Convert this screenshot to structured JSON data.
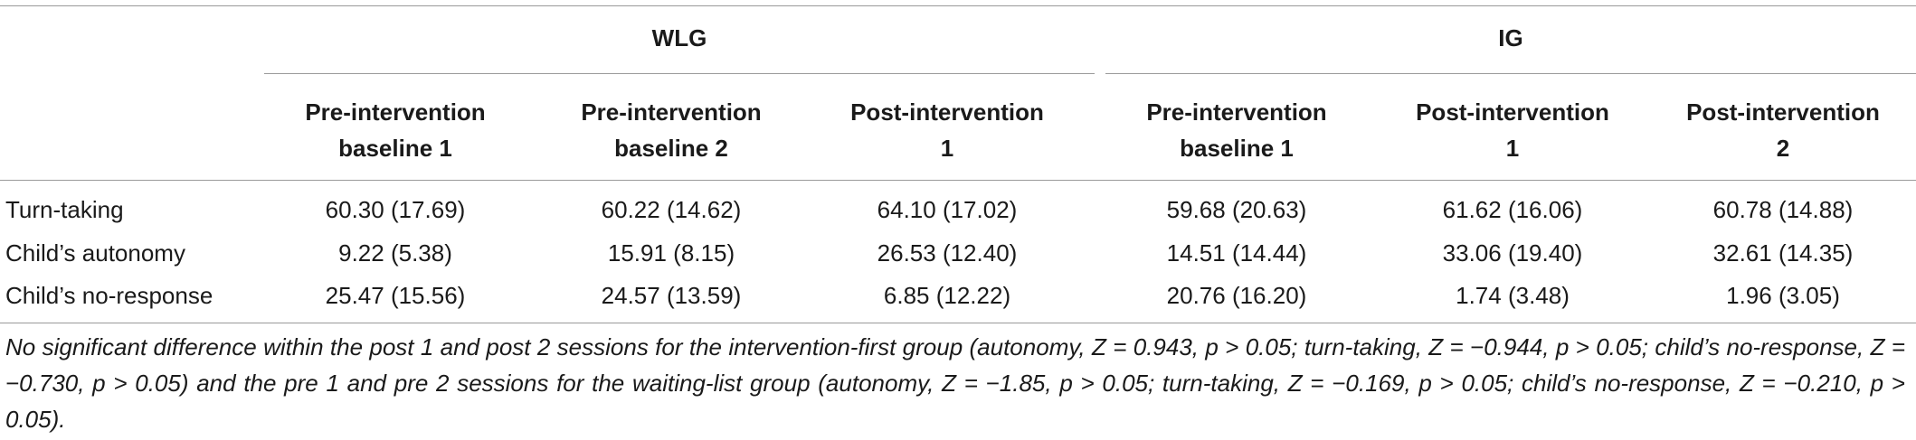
{
  "table": {
    "groups": {
      "wlg": "WLG",
      "ig": "IG"
    },
    "columns": [
      {
        "line1": "Pre-intervention",
        "line2": "baseline 1"
      },
      {
        "line1": "Pre-intervention",
        "line2": "baseline 2"
      },
      {
        "line1": "Post-intervention",
        "line2": "1"
      },
      {
        "line1": "Pre-intervention",
        "line2": "baseline 1"
      },
      {
        "line1": "Post-intervention",
        "line2": "1"
      },
      {
        "line1": "Post-intervention",
        "line2": "2"
      }
    ],
    "rows": [
      {
        "label": "Turn-taking",
        "cells": [
          "60.30 (17.69)",
          "60.22 (14.62)",
          "64.10 (17.02)",
          "59.68 (20.63)",
          "61.62 (16.06)",
          "60.78 (14.88)"
        ]
      },
      {
        "label": "Child’s autonomy",
        "cells": [
          "9.22 (5.38)",
          "15.91 (8.15)",
          "26.53 (12.40)",
          "14.51 (14.44)",
          "33.06 (19.40)",
          "32.61 (14.35)"
        ]
      },
      {
        "label": "Child’s no-response",
        "cells": [
          "25.47 (15.56)",
          "24.57 (13.59)",
          "6.85 (12.22)",
          "20.76 (16.20)",
          "1.74 (3.48)",
          "1.96 (3.05)"
        ]
      }
    ],
    "note": "No significant difference within the post 1 and post 2 sessions for the intervention-first group (autonomy, Z = 0.943, p > 0.05; turn-taking, Z = −0.944, p > 0.05; child’s no-response, Z = −0.730, p > 0.05) and the pre 1 and pre 2 sessions for the waiting-list group (autonomy, Z = −1.85, p > 0.05; turn-taking, Z = −0.169, p > 0.05; child’s no-response, Z = −0.210, p > 0.05)."
  }
}
